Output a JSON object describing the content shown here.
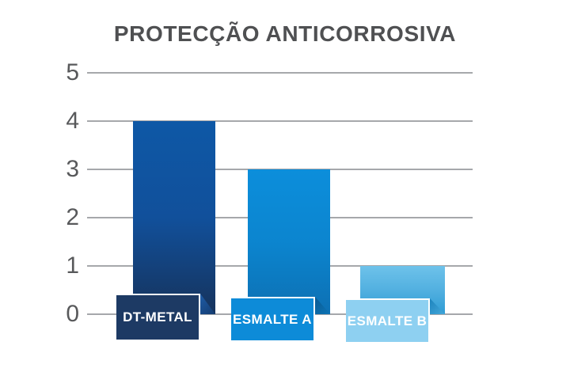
{
  "chart_data": {
    "type": "bar",
    "title": "PROTECÇÃO ANTICORROSIVA",
    "categories": [
      "DT-METAL",
      "ESMALTE A",
      "ESMALTE B"
    ],
    "values": [
      4,
      3,
      1
    ],
    "series": [
      {
        "name": "DT-METAL",
        "value": 4,
        "bar_gradient": [
          "#0e58a6",
          "#11509b",
          "#16335c"
        ],
        "plate_color": "#1d3a64",
        "fold_gradient": [
          "#1f5da8",
          "#143c70"
        ]
      },
      {
        "name": "ESMALTE A",
        "value": 3,
        "bar_gradient": [
          "#0c8edb",
          "#0c85cf",
          "#0d70b3"
        ],
        "plate_color": "#0d8bd8",
        "fold_gradient": [
          "#095a92",
          "#0d74b6"
        ]
      },
      {
        "name": "ESMALTE B",
        "value": 1,
        "bar_gradient": [
          "#6ec2ea",
          "#52b0e0",
          "#2f9cd4"
        ],
        "plate_color": "#8ed0f1",
        "fold_gradient": [
          "#1c83bd",
          "#45a8da"
        ]
      }
    ],
    "xlabel": "",
    "ylabel": "",
    "ylim": [
      0,
      5
    ],
    "yticks": [
      5,
      4,
      3,
      2,
      1,
      0
    ],
    "grid": true,
    "legend": false,
    "label_text_color": "#ffffff",
    "axis_text_color": "#58595b",
    "grid_color": "#a6a8ab",
    "title_color": "#4f5052"
  }
}
